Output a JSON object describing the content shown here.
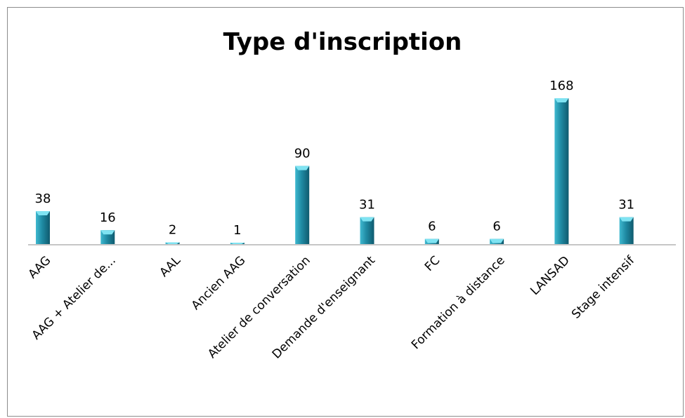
{
  "chart_data": {
    "type": "bar",
    "title": "Type d'inscription",
    "categories": [
      "AAG",
      "AAG + Atelier de...",
      "AAL",
      "Ancien AAG",
      "Atelier de conversation",
      "Demande d'enseignant",
      "FC",
      "Formation à distance",
      "LANSAD",
      "Stage intensif"
    ],
    "series": [
      {
        "values": [
          38,
          16,
          2,
          1,
          90,
          31,
          6,
          6,
          168,
          31
        ]
      }
    ],
    "data_labels": [
      "38",
      "16",
      "2",
      "1",
      "90",
      "31",
      "6",
      "6",
      "168",
      "31"
    ],
    "ylim": [
      0,
      168
    ],
    "grid": false,
    "legend": "none",
    "colors": {
      "bar_light": "#3fb9d0",
      "bar_mid": "#1f8aa3",
      "bar_dark": "#0f5a6e",
      "bar_top": "#7fe3f2",
      "axis": "#8c8c8c"
    }
  }
}
